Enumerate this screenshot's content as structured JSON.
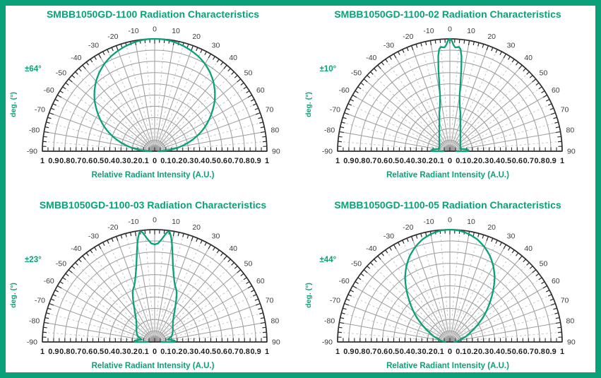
{
  "colors": {
    "accent": "#0aa178",
    "grid": "#9b9b9b",
    "grid_dashed": "#c9c9c9",
    "axis": "#2d2d2d",
    "angle_label": "#3c3c3c",
    "tick_label": "#1f1f1f",
    "background": "#ffffff"
  },
  "axes": {
    "xlabel": "Relative Radiant Intensity (A.U.)",
    "ylabel": "deg. (°)",
    "x_tick_labels": [
      "1",
      "0.9",
      "0.8",
      "0.7",
      "0.6",
      "0.5",
      "0.4",
      "0.3",
      "0.2",
      "0.1",
      "0",
      "0.1",
      "0.2",
      "0.3",
      "0.4",
      "0.5",
      "0.6",
      "0.7",
      "0.8",
      "0.9",
      "1"
    ],
    "angle_labels": [
      "-90",
      "-80",
      "-70",
      "-60",
      "-50",
      "-40",
      "-30",
      "-20",
      "-10",
      "0",
      "10",
      "20",
      "30",
      "40",
      "50",
      "60",
      "70",
      "80",
      "90"
    ],
    "angle_major_step_deg": 10,
    "angle_dashed_step_deg": 5,
    "rim_tick_step_deg": 2.5,
    "x_minor_tick_step": 0.05,
    "r_gridlines": [
      0.1,
      0.2,
      0.3,
      0.4,
      0.5,
      0.6,
      0.7,
      0.8,
      0.9,
      1.0
    ]
  },
  "chart_data": [
    {
      "id": "chart-1",
      "type": "polar-line",
      "title": "SMBB1050GD-1100 Radiation Characteristics",
      "beam_angle_label": "±64°",
      "beam_half_angle_deg": 64,
      "angle_range_deg": [
        -90,
        90
      ],
      "r_range": [
        0,
        1
      ],
      "symmetric_mirror": true,
      "points_deg_r": [
        [
          0,
          1.0
        ],
        [
          5,
          0.998
        ],
        [
          10,
          0.988
        ],
        [
          15,
          0.972
        ],
        [
          20,
          0.952
        ],
        [
          25,
          0.928
        ],
        [
          30,
          0.897
        ],
        [
          35,
          0.858
        ],
        [
          40,
          0.812
        ],
        [
          45,
          0.758
        ],
        [
          50,
          0.698
        ],
        [
          55,
          0.628
        ],
        [
          60,
          0.558
        ],
        [
          64,
          0.5
        ],
        [
          68,
          0.438
        ],
        [
          72,
          0.372
        ],
        [
          76,
          0.303
        ],
        [
          80,
          0.232
        ],
        [
          83,
          0.175
        ],
        [
          86,
          0.115
        ],
        [
          88,
          0.07
        ],
        [
          90,
          0.03
        ]
      ]
    },
    {
      "id": "chart-2",
      "type": "polar-line",
      "title": "SMBB1050GD-1100-02 Radiation Characteristics",
      "beam_angle_label": "±10°",
      "beam_half_angle_deg": 10,
      "angle_range_deg": [
        -90,
        90
      ],
      "r_range": [
        0,
        1
      ],
      "symmetric_mirror": true,
      "points_deg_r": [
        [
          0,
          1.0
        ],
        [
          1,
          0.985
        ],
        [
          2,
          0.945
        ],
        [
          3,
          0.925
        ],
        [
          4,
          0.928
        ],
        [
          5,
          0.932
        ],
        [
          6,
          0.912
        ],
        [
          7,
          0.85
        ],
        [
          8,
          0.73
        ],
        [
          9,
          0.6
        ],
        [
          10,
          0.5
        ],
        [
          11,
          0.46
        ],
        [
          12,
          0.425
        ],
        [
          13,
          0.395
        ],
        [
          15,
          0.36
        ],
        [
          18,
          0.3
        ],
        [
          20,
          0.272
        ],
        [
          25,
          0.22
        ],
        [
          30,
          0.187
        ],
        [
          35,
          0.163
        ],
        [
          40,
          0.146
        ],
        [
          45,
          0.133
        ],
        [
          50,
          0.122
        ],
        [
          55,
          0.114
        ],
        [
          60,
          0.108
        ],
        [
          65,
          0.103
        ],
        [
          70,
          0.1
        ],
        [
          74,
          0.097
        ],
        [
          77,
          0.096
        ],
        [
          80,
          0.112
        ],
        [
          83,
          0.138
        ],
        [
          86,
          0.162
        ],
        [
          88,
          0.168
        ],
        [
          90,
          0.15
        ],
        [
          90,
          0.055
        ]
      ]
    },
    {
      "id": "chart-3",
      "type": "polar-line",
      "title": "SMBB1050GD-1100-03 Radiation Characteristics",
      "beam_angle_label": "±23°",
      "beam_half_angle_deg": 23,
      "angle_range_deg": [
        -90,
        90
      ],
      "r_range": [
        0,
        1
      ],
      "symmetric_mirror": true,
      "points_deg_r": [
        [
          0,
          0.868
        ],
        [
          2,
          0.878
        ],
        [
          4,
          0.918
        ],
        [
          5,
          0.945
        ],
        [
          6,
          0.973
        ],
        [
          7,
          0.992
        ],
        [
          8,
          0.982
        ],
        [
          9,
          0.94
        ],
        [
          10,
          0.886
        ],
        [
          11,
          0.826
        ],
        [
          12,
          0.77
        ],
        [
          13,
          0.72
        ],
        [
          14,
          0.678
        ],
        [
          16,
          0.615
        ],
        [
          18,
          0.567
        ],
        [
          20,
          0.531
        ],
        [
          23,
          0.498
        ],
        [
          26,
          0.443
        ],
        [
          29,
          0.385
        ],
        [
          32,
          0.337
        ],
        [
          35,
          0.3
        ],
        [
          40,
          0.255
        ],
        [
          45,
          0.228
        ],
        [
          50,
          0.21
        ],
        [
          55,
          0.197
        ],
        [
          60,
          0.186
        ],
        [
          65,
          0.175
        ],
        [
          70,
          0.163
        ],
        [
          73,
          0.152
        ],
        [
          76,
          0.133
        ],
        [
          78,
          0.12
        ],
        [
          80,
          0.119
        ],
        [
          83,
          0.146
        ],
        [
          86,
          0.176
        ],
        [
          88,
          0.183
        ],
        [
          90,
          0.17
        ],
        [
          90,
          0.06
        ]
      ]
    },
    {
      "id": "chart-4",
      "type": "polar-line",
      "title": "SMBB1050GD-1100-05 Radiation Characteristics",
      "beam_angle_label": "±44°",
      "beam_half_angle_deg": 44,
      "angle_range_deg": [
        -90,
        90
      ],
      "r_range": [
        0,
        1
      ],
      "symmetric_mirror": true,
      "points_deg_r": [
        [
          0,
          1.0
        ],
        [
          5,
          0.995
        ],
        [
          10,
          0.975
        ],
        [
          15,
          0.945
        ],
        [
          20,
          0.9
        ],
        [
          25,
          0.845
        ],
        [
          30,
          0.775
        ],
        [
          35,
          0.695
        ],
        [
          40,
          0.6
        ],
        [
          44,
          0.525
        ],
        [
          48,
          0.455
        ],
        [
          52,
          0.39
        ],
        [
          56,
          0.325
        ],
        [
          60,
          0.265
        ],
        [
          65,
          0.2
        ],
        [
          70,
          0.16
        ],
        [
          75,
          0.115
        ],
        [
          80,
          0.085
        ],
        [
          84,
          0.065
        ],
        [
          87,
          0.05
        ],
        [
          90,
          0.04
        ]
      ]
    }
  ]
}
